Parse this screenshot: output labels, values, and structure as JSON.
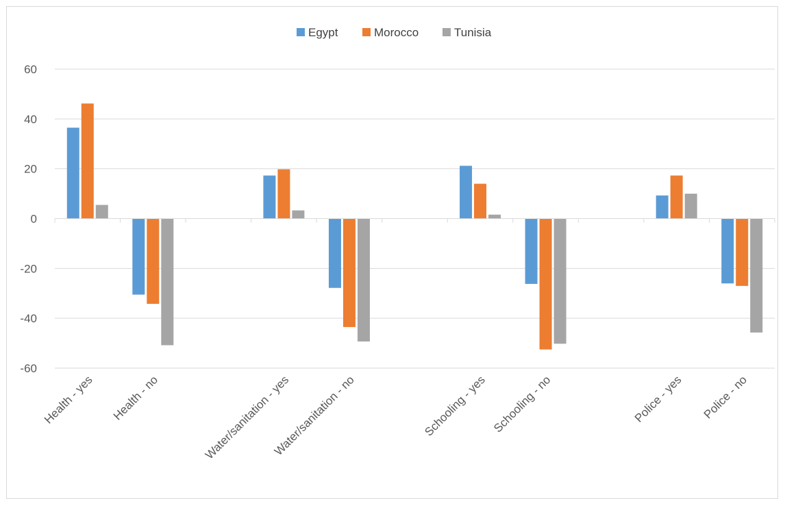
{
  "chart_data": {
    "type": "bar",
    "categories": [
      "Health - yes",
      "Health - no",
      "",
      "Water/sanitation - yes",
      "Water/sanitation - no",
      "",
      "Schooling - yes",
      "Schooling - no",
      "",
      "Police - yes",
      "Police - no"
    ],
    "series": [
      {
        "name": "Egypt",
        "color": "#5b9bd5",
        "values": [
          36.5,
          -30.5,
          null,
          17.3,
          -27.8,
          null,
          21.2,
          -26.2,
          null,
          9.3,
          -26.0
        ]
      },
      {
        "name": "Morocco",
        "color": "#ed7d31",
        "values": [
          46.2,
          -34.2,
          null,
          19.8,
          -43.5,
          null,
          14.0,
          -52.5,
          null,
          17.3,
          -27.0
        ]
      },
      {
        "name": "Tunisia",
        "color": "#a5a5a5",
        "values": [
          5.5,
          -50.8,
          null,
          3.3,
          -49.3,
          null,
          1.6,
          -50.2,
          null,
          10.0,
          -45.7
        ]
      }
    ],
    "title": "",
    "xlabel": "",
    "ylabel": "",
    "ylim": [
      -60,
      60
    ],
    "yticks": [
      "60",
      "40",
      "20",
      "0",
      "-20",
      "-40",
      "-60"
    ],
    "grid": true,
    "legend_position": "top"
  }
}
